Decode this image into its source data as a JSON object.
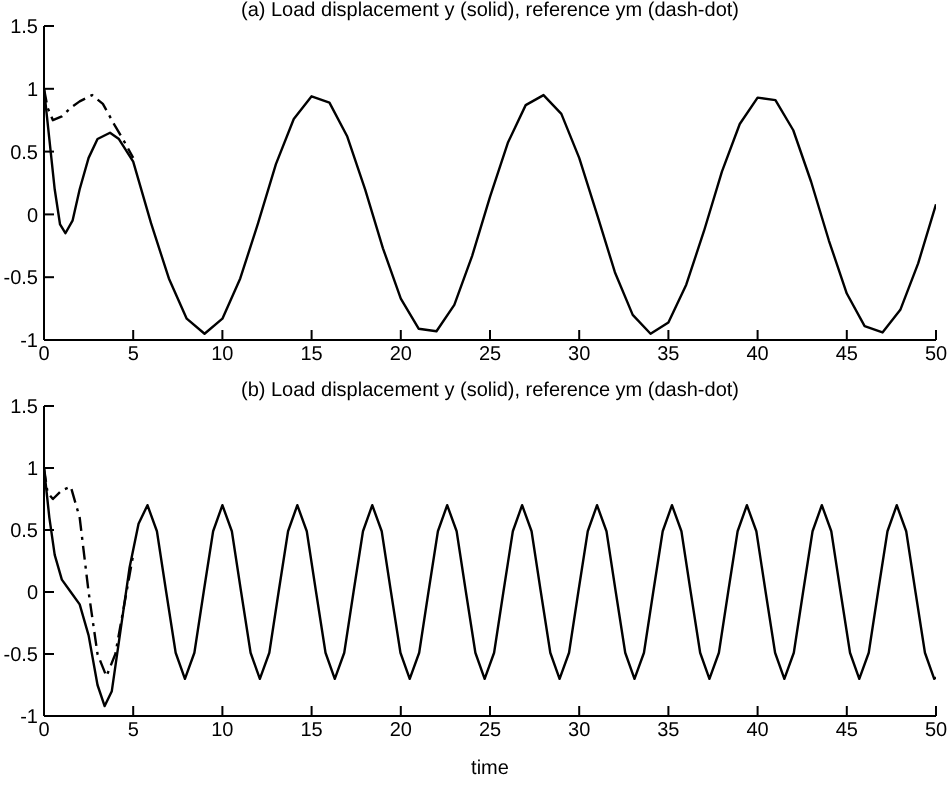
{
  "chart_data": [
    {
      "type": "line",
      "title": "(a) Load displacement y (solid), reference ym (dash-dot)",
      "xlim": [
        0,
        50
      ],
      "xticks": [
        0,
        5,
        10,
        15,
        20,
        25,
        30,
        35,
        40,
        45,
        50
      ],
      "ylim": [
        -1,
        1.5
      ],
      "yticks": [
        -1,
        -0.5,
        0,
        0.5,
        1,
        1.5
      ],
      "series": [
        {
          "color": "#000000",
          "line_style": "solid",
          "x": [
            0,
            0.3,
            0.6,
            0.9,
            1.2,
            1.6,
            2,
            2.5,
            3,
            3.7,
            4.2,
            5,
            6,
            7,
            8,
            9,
            10,
            11,
            12,
            13,
            14,
            15,
            16,
            17,
            18,
            19,
            20,
            21,
            22,
            23,
            24,
            25,
            26,
            27,
            28,
            29,
            30,
            31,
            32,
            33,
            34,
            35,
            36,
            37,
            38,
            39,
            40,
            41,
            42,
            43,
            44,
            45,
            46,
            47,
            48,
            49,
            50
          ],
          "values": [
            1,
            0.6,
            0.2,
            -0.08,
            -0.15,
            -0.05,
            0.2,
            0.45,
            0.6,
            0.65,
            0.6,
            0.42,
            -0.07,
            -0.51,
            -0.83,
            -0.95,
            -0.83,
            -0.51,
            -0.07,
            0.4,
            0.76,
            0.94,
            0.89,
            0.62,
            0.2,
            -0.27,
            -0.67,
            -0.91,
            -0.93,
            -0.72,
            -0.33,
            0.14,
            0.57,
            0.87,
            0.95,
            0.8,
            0.45,
            0,
            -0.46,
            -0.8,
            -0.95,
            -0.86,
            -0.56,
            -0.13,
            0.34,
            0.72,
            0.93,
            0.91,
            0.67,
            0.26,
            -0.21,
            -0.63,
            -0.89,
            -0.94,
            -0.76,
            -0.39,
            0.08
          ]
        },
        {
          "color": "#000000",
          "line_style": "dashed",
          "x": [
            0,
            0.2,
            0.5,
            1,
            1.5,
            2,
            2.7,
            3.3,
            4,
            4.5,
            5
          ],
          "values": [
            1,
            0.85,
            0.75,
            0.78,
            0.85,
            0.9,
            0.95,
            0.88,
            0.7,
            0.58,
            0.45
          ]
        }
      ]
    },
    {
      "type": "line",
      "title": "(b) Load displacement y (solid), reference ym (dash-dot)",
      "xlabel": "time",
      "xlim": [
        0,
        50
      ],
      "xticks": [
        0,
        5,
        10,
        15,
        20,
        25,
        30,
        35,
        40,
        45,
        50
      ],
      "ylim": [
        -1,
        1.5
      ],
      "yticks": [
        -1,
        -0.5,
        0,
        0.5,
        1,
        1.5
      ],
      "series": [
        {
          "color": "#000000",
          "line_style": "solid",
          "x": [
            0,
            0.3,
            0.6,
            1,
            1.5,
            2,
            2.5,
            3,
            3.4,
            3.8,
            4.3,
            4.8,
            5.3,
            5.8,
            6.33,
            6.85,
            7.38,
            7.9,
            8.43,
            8.95,
            9.48,
            10,
            10.53,
            11.05,
            11.58,
            12.1,
            12.63,
            13.15,
            13.68,
            14.2,
            14.73,
            15.25,
            15.78,
            16.3,
            16.83,
            17.35,
            17.88,
            18.4,
            18.93,
            19.45,
            19.98,
            20.5,
            21.03,
            21.55,
            22.08,
            22.6,
            23.13,
            23.65,
            24.18,
            24.7,
            25.23,
            25.75,
            26.28,
            26.8,
            27.33,
            27.85,
            28.38,
            28.9,
            29.43,
            29.95,
            30.48,
            31,
            31.53,
            32.05,
            32.58,
            33.1,
            33.63,
            34.15,
            34.68,
            35.2,
            35.73,
            36.25,
            36.78,
            37.3,
            37.83,
            38.35,
            38.88,
            39.4,
            39.93,
            40.45,
            40.98,
            41.5,
            42.03,
            42.55,
            43.08,
            43.6,
            44.13,
            44.65,
            45.18,
            45.7,
            46.23,
            46.75,
            47.28,
            47.8,
            48.33,
            48.85,
            49.38,
            49.9,
            50
          ],
          "values": [
            1,
            0.6,
            0.3,
            0.1,
            0,
            -0.1,
            -0.35,
            -0.75,
            -0.92,
            -0.8,
            -0.3,
            0.2,
            0.55,
            0.7,
            0.49,
            0,
            -0.49,
            -0.7,
            -0.49,
            0,
            0.49,
            0.7,
            0.49,
            0,
            -0.49,
            -0.7,
            -0.49,
            0,
            0.49,
            0.7,
            0.49,
            0,
            -0.49,
            -0.7,
            -0.49,
            0,
            0.49,
            0.7,
            0.49,
            0,
            -0.49,
            -0.7,
            -0.49,
            0,
            0.49,
            0.7,
            0.49,
            0,
            -0.49,
            -0.7,
            -0.49,
            0,
            0.49,
            0.7,
            0.49,
            0,
            -0.49,
            -0.7,
            -0.49,
            0,
            0.49,
            0.7,
            0.49,
            0,
            -0.49,
            -0.7,
            -0.49,
            0,
            0.49,
            0.7,
            0.49,
            0,
            -0.49,
            -0.7,
            -0.49,
            0,
            0.49,
            0.7,
            0.49,
            0,
            -0.49,
            -0.7,
            -0.49,
            0,
            0.49,
            0.7,
            0.49,
            0,
            -0.49,
            -0.7,
            -0.49,
            0,
            0.49,
            0.7,
            0.49,
            0,
            -0.49,
            -0.7,
            -0.69
          ]
        },
        {
          "color": "#000000",
          "line_style": "dashed",
          "x": [
            0,
            0.2,
            0.5,
            1,
            1.5,
            2,
            2.5,
            3,
            3.5,
            4,
            4.5,
            5
          ],
          "values": [
            1,
            0.8,
            0.75,
            0.82,
            0.85,
            0.6,
            0,
            -0.5,
            -0.68,
            -0.5,
            -0.1,
            0.3
          ]
        }
      ]
    }
  ]
}
